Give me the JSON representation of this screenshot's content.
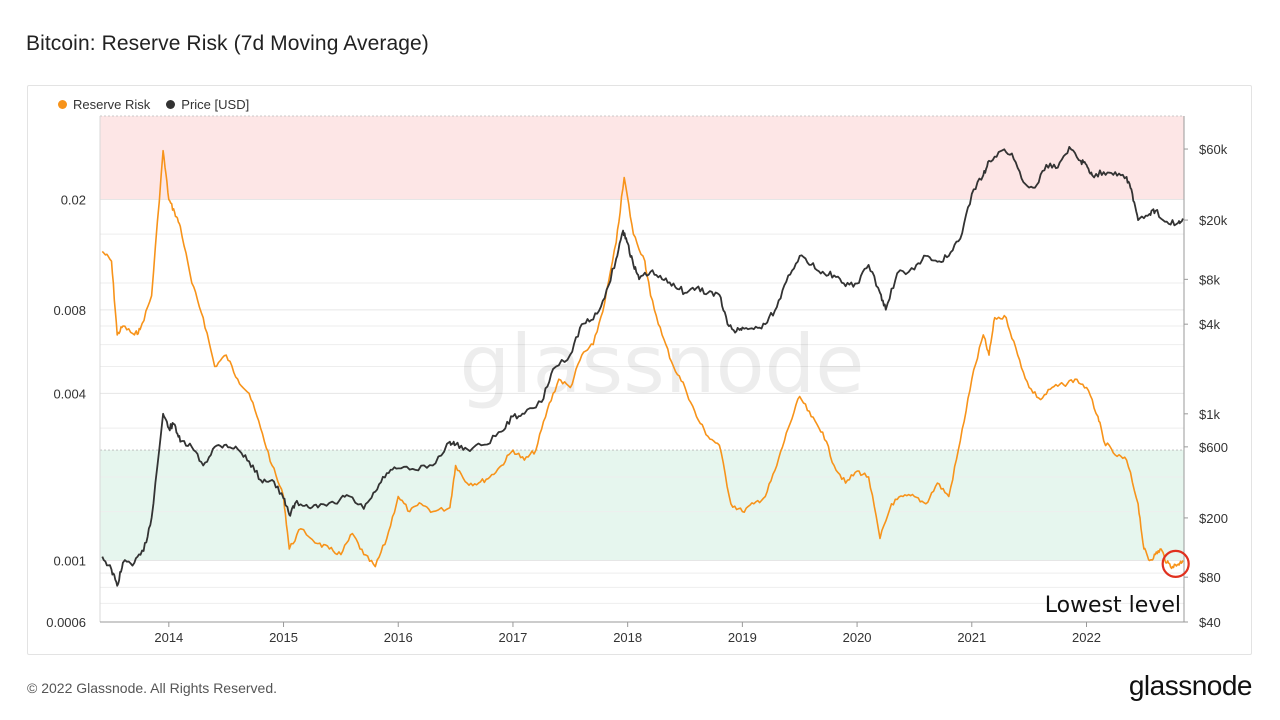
{
  "title": "Bitcoin: Reserve Risk (7d Moving Average)",
  "footer": "© 2022 Glassnode. All Rights Reserved.",
  "brand": "glassnode",
  "watermark": "glassnode",
  "colors": {
    "reserve_risk": "#f7931a",
    "price": "#333333",
    "red_zone": "#fde6e6",
    "green_zone": "#e6f6ee",
    "highlight_circle": "#e0301e"
  },
  "chart_data": {
    "type": "line",
    "legend": [
      {
        "label": "Reserve Risk",
        "color": "#f7931a"
      },
      {
        "label": "Price [USD]",
        "color": "#333333"
      }
    ],
    "legend_placement": "top-left",
    "x_ticks": [
      "2014",
      "2015",
      "2016",
      "2017",
      "2018",
      "2019",
      "2020",
      "2021",
      "2022"
    ],
    "x_range": [
      2013.4,
      2022.85
    ],
    "y_left": {
      "scale": "log",
      "range": [
        0.0006,
        0.04
      ],
      "ticks": [
        {
          "value": 0.02,
          "label": "0.02"
        },
        {
          "value": 0.008,
          "label": "0.008"
        },
        {
          "value": 0.004,
          "label": "0.004"
        },
        {
          "value": 0.001,
          "label": "0.001"
        },
        {
          "value": 0.0006,
          "label": "0.0006"
        }
      ]
    },
    "y_right": {
      "scale": "log",
      "range": [
        40,
        100000
      ],
      "ticks": [
        {
          "value": 60000,
          "label": "$60k"
        },
        {
          "value": 20000,
          "label": "$20k"
        },
        {
          "value": 8000,
          "label": "$8k"
        },
        {
          "value": 4000,
          "label": "$4k"
        },
        {
          "value": 1000,
          "label": "$1k"
        },
        {
          "value": 600,
          "label": "$600"
        },
        {
          "value": 200,
          "label": "$200"
        },
        {
          "value": 80,
          "label": "$80"
        },
        {
          "value": 40,
          "label": "$40"
        }
      ]
    },
    "zones": [
      {
        "name": "upper",
        "from": 0.02,
        "to": 0.04,
        "color": "#fde6e6"
      },
      {
        "name": "lower",
        "from": 0.001,
        "to": 0.0025,
        "color": "#e6f6ee"
      }
    ],
    "series": [
      {
        "name": "Reserve Risk",
        "axis": "left",
        "color": "#f7931a",
        "points": [
          [
            2013.42,
            0.013
          ],
          [
            2013.5,
            0.012
          ],
          [
            2013.55,
            0.0065
          ],
          [
            2013.6,
            0.007
          ],
          [
            2013.7,
            0.0065
          ],
          [
            2013.75,
            0.0068
          ],
          [
            2013.85,
            0.009
          ],
          [
            2013.95,
            0.03
          ],
          [
            2014.0,
            0.02
          ],
          [
            2014.05,
            0.018
          ],
          [
            2014.1,
            0.016
          ],
          [
            2014.2,
            0.01
          ],
          [
            2014.3,
            0.0075
          ],
          [
            2014.4,
            0.005
          ],
          [
            2014.5,
            0.0055
          ],
          [
            2014.6,
            0.0045
          ],
          [
            2014.7,
            0.004
          ],
          [
            2014.8,
            0.003
          ],
          [
            2014.9,
            0.0022
          ],
          [
            2015.0,
            0.0017
          ],
          [
            2015.05,
            0.0011
          ],
          [
            2015.15,
            0.0013
          ],
          [
            2015.3,
            0.00115
          ],
          [
            2015.4,
            0.0011
          ],
          [
            2015.5,
            0.00105
          ],
          [
            2015.6,
            0.00125
          ],
          [
            2015.7,
            0.00105
          ],
          [
            2015.8,
            0.00095
          ],
          [
            2015.9,
            0.0012
          ],
          [
            2016.0,
            0.0017
          ],
          [
            2016.1,
            0.0015
          ],
          [
            2016.2,
            0.0016
          ],
          [
            2016.3,
            0.0015
          ],
          [
            2016.45,
            0.00155
          ],
          [
            2016.5,
            0.0022
          ],
          [
            2016.6,
            0.0019
          ],
          [
            2016.7,
            0.0019
          ],
          [
            2016.8,
            0.002
          ],
          [
            2016.9,
            0.0022
          ],
          [
            2017.0,
            0.0025
          ],
          [
            2017.1,
            0.0023
          ],
          [
            2017.2,
            0.0025
          ],
          [
            2017.3,
            0.0035
          ],
          [
            2017.4,
            0.0045
          ],
          [
            2017.5,
            0.0042
          ],
          [
            2017.6,
            0.0055
          ],
          [
            2017.7,
            0.006
          ],
          [
            2017.8,
            0.0085
          ],
          [
            2017.9,
            0.014
          ],
          [
            2017.97,
            0.024
          ],
          [
            2018.05,
            0.015
          ],
          [
            2018.15,
            0.012
          ],
          [
            2018.2,
            0.009
          ],
          [
            2018.3,
            0.0065
          ],
          [
            2018.4,
            0.005
          ],
          [
            2018.5,
            0.0042
          ],
          [
            2018.6,
            0.0033
          ],
          [
            2018.7,
            0.0028
          ],
          [
            2018.8,
            0.0026
          ],
          [
            2018.9,
            0.0016
          ],
          [
            2019.0,
            0.0015
          ],
          [
            2019.1,
            0.0016
          ],
          [
            2019.2,
            0.0017
          ],
          [
            2019.3,
            0.0022
          ],
          [
            2019.4,
            0.003
          ],
          [
            2019.5,
            0.0039
          ],
          [
            2019.6,
            0.0033
          ],
          [
            2019.7,
            0.0029
          ],
          [
            2019.8,
            0.0022
          ],
          [
            2019.9,
            0.0019
          ],
          [
            2020.0,
            0.0021
          ],
          [
            2020.1,
            0.002
          ],
          [
            2020.2,
            0.0012
          ],
          [
            2020.3,
            0.0016
          ],
          [
            2020.4,
            0.0017
          ],
          [
            2020.5,
            0.0017
          ],
          [
            2020.6,
            0.0016
          ],
          [
            2020.7,
            0.0019
          ],
          [
            2020.8,
            0.0017
          ],
          [
            2020.9,
            0.0027
          ],
          [
            2021.0,
            0.0045
          ],
          [
            2021.1,
            0.0065
          ],
          [
            2021.15,
            0.0055
          ],
          [
            2021.2,
            0.0075
          ],
          [
            2021.3,
            0.0075
          ],
          [
            2021.4,
            0.0055
          ],
          [
            2021.5,
            0.0042
          ],
          [
            2021.6,
            0.0038
          ],
          [
            2021.7,
            0.0042
          ],
          [
            2021.8,
            0.0043
          ],
          [
            2021.9,
            0.0045
          ],
          [
            2022.0,
            0.0042
          ],
          [
            2022.1,
            0.0033
          ],
          [
            2022.15,
            0.0027
          ],
          [
            2022.25,
            0.0024
          ],
          [
            2022.35,
            0.0023
          ],
          [
            2022.45,
            0.0016
          ],
          [
            2022.5,
            0.0011
          ],
          [
            2022.55,
            0.001
          ],
          [
            2022.6,
            0.00105
          ],
          [
            2022.65,
            0.0011
          ],
          [
            2022.7,
            0.00098
          ],
          [
            2022.75,
            0.00095
          ],
          [
            2022.8,
            0.00097
          ],
          [
            2022.84,
            0.001
          ]
        ]
      },
      {
        "name": "Price [USD]",
        "axis": "right",
        "color": "#333333",
        "points": [
          [
            2013.42,
            110
          ],
          [
            2013.5,
            90
          ],
          [
            2013.55,
            70
          ],
          [
            2013.6,
            100
          ],
          [
            2013.7,
            100
          ],
          [
            2013.78,
            120
          ],
          [
            2013.85,
            200
          ],
          [
            2013.95,
            1000
          ],
          [
            2014.0,
            800
          ],
          [
            2014.05,
            850
          ],
          [
            2014.1,
            650
          ],
          [
            2014.2,
            600
          ],
          [
            2014.3,
            450
          ],
          [
            2014.4,
            600
          ],
          [
            2014.5,
            620
          ],
          [
            2014.6,
            580
          ],
          [
            2014.7,
            480
          ],
          [
            2014.8,
            360
          ],
          [
            2014.9,
            360
          ],
          [
            2015.0,
            270
          ],
          [
            2015.05,
            210
          ],
          [
            2015.1,
            250
          ],
          [
            2015.2,
            245
          ],
          [
            2015.3,
            235
          ],
          [
            2015.45,
            250
          ],
          [
            2015.55,
            285
          ],
          [
            2015.7,
            230
          ],
          [
            2015.8,
            300
          ],
          [
            2015.9,
            400
          ],
          [
            2016.0,
            430
          ],
          [
            2016.15,
            420
          ],
          [
            2016.3,
            450
          ],
          [
            2016.45,
            650
          ],
          [
            2016.5,
            620
          ],
          [
            2016.6,
            580
          ],
          [
            2016.75,
            620
          ],
          [
            2016.9,
            760
          ],
          [
            2017.0,
            960
          ],
          [
            2017.1,
            1000
          ],
          [
            2017.25,
            1200
          ],
          [
            2017.35,
            2000
          ],
          [
            2017.5,
            2500
          ],
          [
            2017.6,
            4000
          ],
          [
            2017.7,
            4300
          ],
          [
            2017.8,
            6000
          ],
          [
            2017.9,
            11000
          ],
          [
            2017.96,
            17000
          ],
          [
            2018.0,
            14000
          ],
          [
            2018.05,
            10000
          ],
          [
            2018.1,
            8000
          ],
          [
            2018.2,
            9000
          ],
          [
            2018.3,
            8000
          ],
          [
            2018.4,
            7500
          ],
          [
            2018.5,
            6500
          ],
          [
            2018.6,
            7000
          ],
          [
            2018.7,
            6500
          ],
          [
            2018.8,
            6300
          ],
          [
            2018.87,
            4000
          ],
          [
            2018.95,
            3600
          ],
          [
            2019.0,
            3800
          ],
          [
            2019.1,
            3700
          ],
          [
            2019.2,
            4000
          ],
          [
            2019.3,
            5200
          ],
          [
            2019.4,
            8500
          ],
          [
            2019.5,
            11500
          ],
          [
            2019.6,
            10000
          ],
          [
            2019.7,
            9000
          ],
          [
            2019.8,
            8500
          ],
          [
            2019.9,
            7200
          ],
          [
            2020.0,
            7500
          ],
          [
            2020.1,
            10000
          ],
          [
            2020.2,
            6500
          ],
          [
            2020.25,
            5000
          ],
          [
            2020.35,
            8800
          ],
          [
            2020.5,
            9300
          ],
          [
            2020.6,
            11500
          ],
          [
            2020.7,
            10500
          ],
          [
            2020.8,
            11500
          ],
          [
            2020.9,
            15000
          ],
          [
            2021.0,
            30000
          ],
          [
            2021.1,
            40000
          ],
          [
            2021.15,
            50000
          ],
          [
            2021.25,
            58000
          ],
          [
            2021.35,
            56000
          ],
          [
            2021.45,
            36000
          ],
          [
            2021.55,
            33000
          ],
          [
            2021.65,
            47000
          ],
          [
            2021.75,
            45000
          ],
          [
            2021.85,
            62000
          ],
          [
            2021.95,
            50000
          ],
          [
            2022.0,
            47000
          ],
          [
            2022.05,
            40000
          ],
          [
            2022.15,
            42000
          ],
          [
            2022.25,
            42000
          ],
          [
            2022.35,
            39000
          ],
          [
            2022.4,
            30000
          ],
          [
            2022.45,
            20000
          ],
          [
            2022.55,
            22000
          ],
          [
            2022.6,
            23000
          ],
          [
            2022.7,
            19500
          ],
          [
            2022.8,
            19200
          ],
          [
            2022.84,
            20500
          ]
        ]
      }
    ],
    "annotation": {
      "text": "Lowest level",
      "x": 2022.76,
      "y": 0.00098
    }
  }
}
